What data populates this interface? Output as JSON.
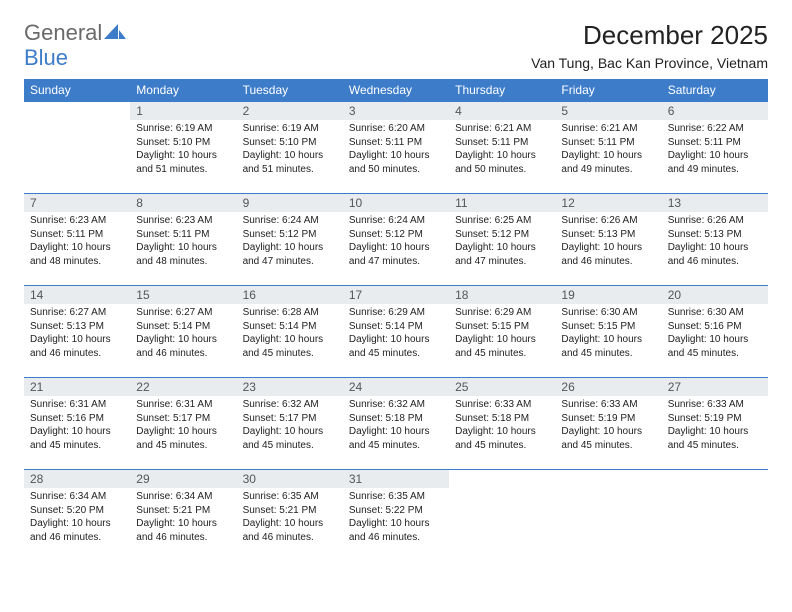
{
  "logo": {
    "text1": "General",
    "text2": "Blue"
  },
  "title": "December 2025",
  "location": "Van Tung, Bac Kan Province, Vietnam",
  "brand_color": "#3d7cc9",
  "header_bg": "#3d7cc9",
  "daynum_bg": "#e8ecef",
  "weekdays": [
    "Sunday",
    "Monday",
    "Tuesday",
    "Wednesday",
    "Thursday",
    "Friday",
    "Saturday"
  ],
  "weeks": [
    [
      {
        "n": "",
        "sunrise": "",
        "sunset": "",
        "daylight": ""
      },
      {
        "n": "1",
        "sunrise": "Sunrise: 6:19 AM",
        "sunset": "Sunset: 5:10 PM",
        "daylight": "Daylight: 10 hours and 51 minutes."
      },
      {
        "n": "2",
        "sunrise": "Sunrise: 6:19 AM",
        "sunset": "Sunset: 5:10 PM",
        "daylight": "Daylight: 10 hours and 51 minutes."
      },
      {
        "n": "3",
        "sunrise": "Sunrise: 6:20 AM",
        "sunset": "Sunset: 5:11 PM",
        "daylight": "Daylight: 10 hours and 50 minutes."
      },
      {
        "n": "4",
        "sunrise": "Sunrise: 6:21 AM",
        "sunset": "Sunset: 5:11 PM",
        "daylight": "Daylight: 10 hours and 50 minutes."
      },
      {
        "n": "5",
        "sunrise": "Sunrise: 6:21 AM",
        "sunset": "Sunset: 5:11 PM",
        "daylight": "Daylight: 10 hours and 49 minutes."
      },
      {
        "n": "6",
        "sunrise": "Sunrise: 6:22 AM",
        "sunset": "Sunset: 5:11 PM",
        "daylight": "Daylight: 10 hours and 49 minutes."
      }
    ],
    [
      {
        "n": "7",
        "sunrise": "Sunrise: 6:23 AM",
        "sunset": "Sunset: 5:11 PM",
        "daylight": "Daylight: 10 hours and 48 minutes."
      },
      {
        "n": "8",
        "sunrise": "Sunrise: 6:23 AM",
        "sunset": "Sunset: 5:11 PM",
        "daylight": "Daylight: 10 hours and 48 minutes."
      },
      {
        "n": "9",
        "sunrise": "Sunrise: 6:24 AM",
        "sunset": "Sunset: 5:12 PM",
        "daylight": "Daylight: 10 hours and 47 minutes."
      },
      {
        "n": "10",
        "sunrise": "Sunrise: 6:24 AM",
        "sunset": "Sunset: 5:12 PM",
        "daylight": "Daylight: 10 hours and 47 minutes."
      },
      {
        "n": "11",
        "sunrise": "Sunrise: 6:25 AM",
        "sunset": "Sunset: 5:12 PM",
        "daylight": "Daylight: 10 hours and 47 minutes."
      },
      {
        "n": "12",
        "sunrise": "Sunrise: 6:26 AM",
        "sunset": "Sunset: 5:13 PM",
        "daylight": "Daylight: 10 hours and 46 minutes."
      },
      {
        "n": "13",
        "sunrise": "Sunrise: 6:26 AM",
        "sunset": "Sunset: 5:13 PM",
        "daylight": "Daylight: 10 hours and 46 minutes."
      }
    ],
    [
      {
        "n": "14",
        "sunrise": "Sunrise: 6:27 AM",
        "sunset": "Sunset: 5:13 PM",
        "daylight": "Daylight: 10 hours and 46 minutes."
      },
      {
        "n": "15",
        "sunrise": "Sunrise: 6:27 AM",
        "sunset": "Sunset: 5:14 PM",
        "daylight": "Daylight: 10 hours and 46 minutes."
      },
      {
        "n": "16",
        "sunrise": "Sunrise: 6:28 AM",
        "sunset": "Sunset: 5:14 PM",
        "daylight": "Daylight: 10 hours and 45 minutes."
      },
      {
        "n": "17",
        "sunrise": "Sunrise: 6:29 AM",
        "sunset": "Sunset: 5:14 PM",
        "daylight": "Daylight: 10 hours and 45 minutes."
      },
      {
        "n": "18",
        "sunrise": "Sunrise: 6:29 AM",
        "sunset": "Sunset: 5:15 PM",
        "daylight": "Daylight: 10 hours and 45 minutes."
      },
      {
        "n": "19",
        "sunrise": "Sunrise: 6:30 AM",
        "sunset": "Sunset: 5:15 PM",
        "daylight": "Daylight: 10 hours and 45 minutes."
      },
      {
        "n": "20",
        "sunrise": "Sunrise: 6:30 AM",
        "sunset": "Sunset: 5:16 PM",
        "daylight": "Daylight: 10 hours and 45 minutes."
      }
    ],
    [
      {
        "n": "21",
        "sunrise": "Sunrise: 6:31 AM",
        "sunset": "Sunset: 5:16 PM",
        "daylight": "Daylight: 10 hours and 45 minutes."
      },
      {
        "n": "22",
        "sunrise": "Sunrise: 6:31 AM",
        "sunset": "Sunset: 5:17 PM",
        "daylight": "Daylight: 10 hours and 45 minutes."
      },
      {
        "n": "23",
        "sunrise": "Sunrise: 6:32 AM",
        "sunset": "Sunset: 5:17 PM",
        "daylight": "Daylight: 10 hours and 45 minutes."
      },
      {
        "n": "24",
        "sunrise": "Sunrise: 6:32 AM",
        "sunset": "Sunset: 5:18 PM",
        "daylight": "Daylight: 10 hours and 45 minutes."
      },
      {
        "n": "25",
        "sunrise": "Sunrise: 6:33 AM",
        "sunset": "Sunset: 5:18 PM",
        "daylight": "Daylight: 10 hours and 45 minutes."
      },
      {
        "n": "26",
        "sunrise": "Sunrise: 6:33 AM",
        "sunset": "Sunset: 5:19 PM",
        "daylight": "Daylight: 10 hours and 45 minutes."
      },
      {
        "n": "27",
        "sunrise": "Sunrise: 6:33 AM",
        "sunset": "Sunset: 5:19 PM",
        "daylight": "Daylight: 10 hours and 45 minutes."
      }
    ],
    [
      {
        "n": "28",
        "sunrise": "Sunrise: 6:34 AM",
        "sunset": "Sunset: 5:20 PM",
        "daylight": "Daylight: 10 hours and 46 minutes."
      },
      {
        "n": "29",
        "sunrise": "Sunrise: 6:34 AM",
        "sunset": "Sunset: 5:21 PM",
        "daylight": "Daylight: 10 hours and 46 minutes."
      },
      {
        "n": "30",
        "sunrise": "Sunrise: 6:35 AM",
        "sunset": "Sunset: 5:21 PM",
        "daylight": "Daylight: 10 hours and 46 minutes."
      },
      {
        "n": "31",
        "sunrise": "Sunrise: 6:35 AM",
        "sunset": "Sunset: 5:22 PM",
        "daylight": "Daylight: 10 hours and 46 minutes."
      },
      {
        "n": "",
        "sunrise": "",
        "sunset": "",
        "daylight": ""
      },
      {
        "n": "",
        "sunrise": "",
        "sunset": "",
        "daylight": ""
      },
      {
        "n": "",
        "sunrise": "",
        "sunset": "",
        "daylight": ""
      }
    ]
  ]
}
